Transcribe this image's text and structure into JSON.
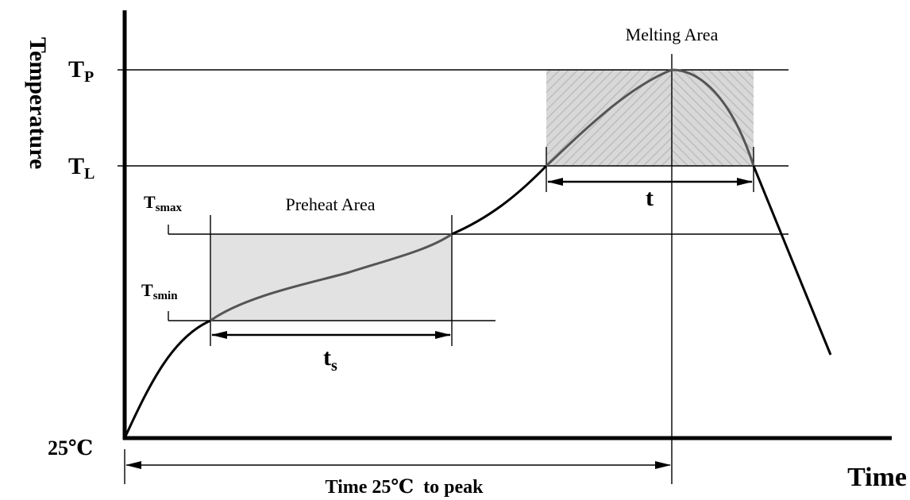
{
  "labels": {
    "y_axis": "Temperature",
    "x_axis": "Time",
    "origin": "25℃",
    "tp_main": "T",
    "tp_sub": "P",
    "tl_main": "T",
    "tl_sub": "L",
    "tsmax_main": "T",
    "tsmax_sub": "smax",
    "tsmin_main": "T",
    "tsmin_sub": "smin",
    "preheat_area": "Preheat Area",
    "melting_area": "Melting Area",
    "ts_main": "t",
    "ts_sub": "s",
    "t_label": "t",
    "time_to_peak": "Time 25℃  to peak"
  },
  "colors": {
    "axis": "#000000",
    "curve": "#000000",
    "curve_inside_region": "#555555",
    "preheat_fill": "#e2e2e2",
    "melting_fill": "#d6d6d6",
    "melting_hatch": "#bcbcbc"
  }
}
